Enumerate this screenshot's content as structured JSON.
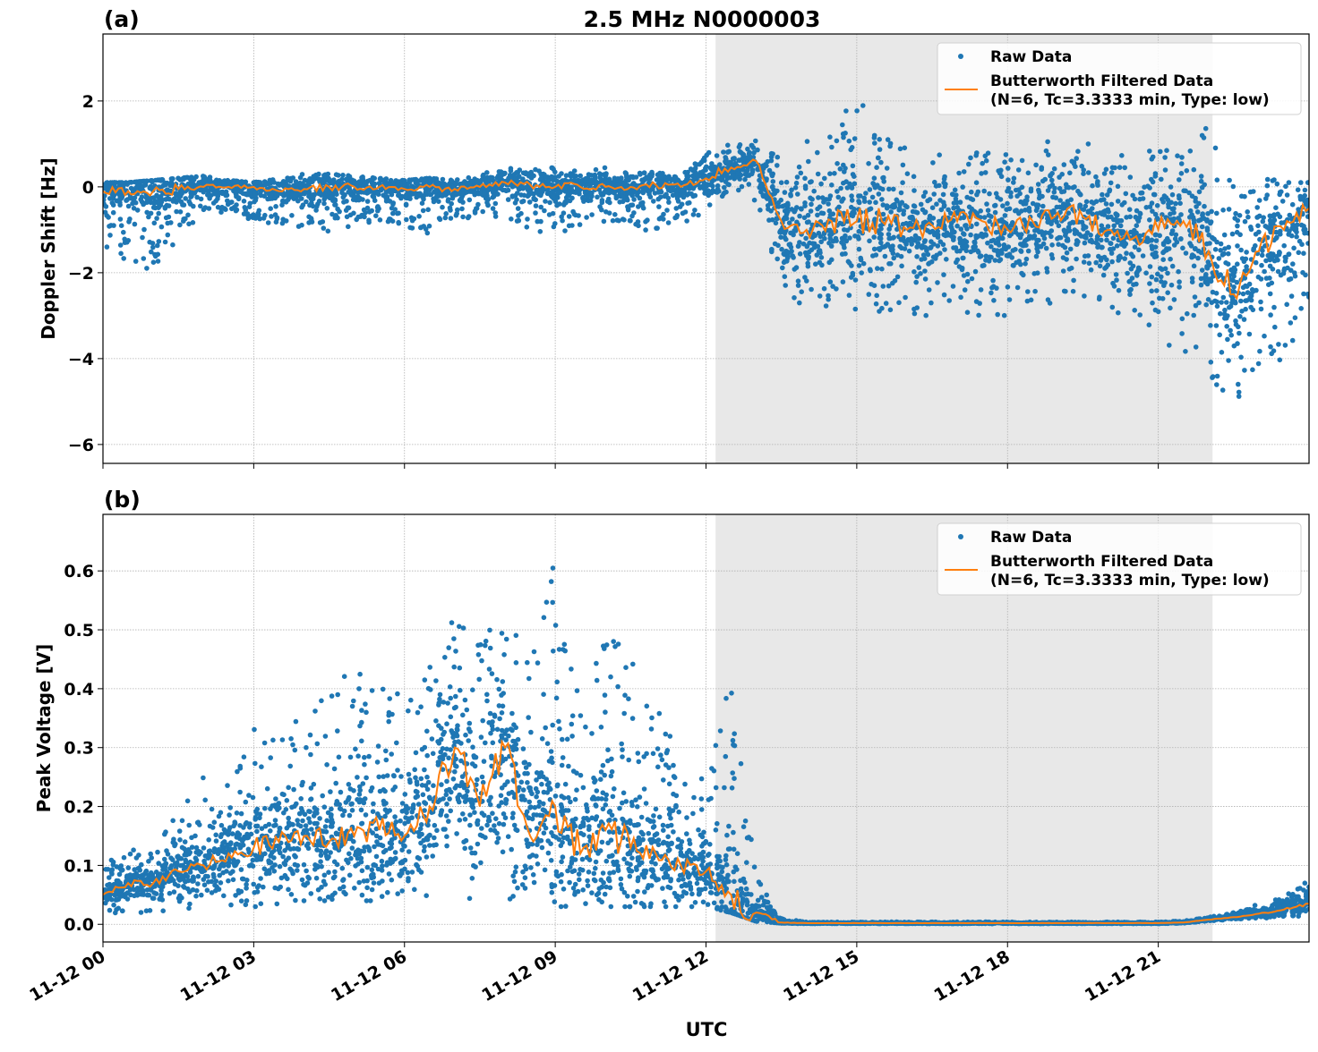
{
  "chart_data": {
    "title": "2.5 MHz N0000003",
    "xlabel": "UTC",
    "x_unit": "hours since 11-12 00 UTC",
    "xlim": [
      0,
      24
    ],
    "xticks": [
      0,
      3,
      6,
      9,
      12,
      15,
      18,
      21
    ],
    "xtick_labels": [
      "11-12 00",
      "11-12 03",
      "11-12 06",
      "11-12 09",
      "11-12 12",
      "11-12 15",
      "11-12 18",
      "11-12 21"
    ],
    "shaded_interval": [
      12.19,
      22.08
    ],
    "shade_color": "#e8e8e8",
    "grid": true,
    "legend_placement": "upper-right",
    "series_colors": {
      "raw": "#1f77b4",
      "filtered": "#ff7f0e"
    },
    "panels": [
      {
        "label": "(a)",
        "type": "scatter+line",
        "ylabel": "Doppler Shift [Hz]",
        "ylim": [
          -6.44,
          3.56
        ],
        "yticks": [
          -6,
          -4,
          -2,
          0,
          2
        ],
        "ytick_labels": [
          "−6",
          "−4",
          "−2",
          "0",
          "2"
        ],
        "legend": [
          "Raw Data",
          "Butterworth Filtered Data",
          "(N=6, Tc=3.3333 min, Type: low)"
        ],
        "x": [
          0,
          0.5,
          1,
          1.5,
          2,
          2.5,
          3,
          3.5,
          4,
          4.5,
          5,
          5.5,
          6,
          6.5,
          7,
          7.5,
          8,
          8.5,
          9,
          9.5,
          10,
          10.5,
          11,
          11.5,
          12,
          12.5,
          13,
          13.5,
          14,
          14.5,
          15,
          15.5,
          16,
          16.5,
          17,
          17.5,
          18,
          18.5,
          19,
          19.5,
          20,
          20.5,
          21,
          21.5,
          22,
          22.5,
          23,
          23.5,
          24
        ],
        "filtered": [
          -0.1,
          -0.1,
          -0.1,
          -0.05,
          0,
          0,
          0,
          -0.1,
          -0.05,
          0,
          0,
          0,
          -0.05,
          0,
          -0.05,
          0,
          0.1,
          0.05,
          0,
          0,
          0,
          0,
          0.05,
          0,
          0.2,
          0.45,
          0.6,
          -0.8,
          -1.0,
          -0.8,
          -0.8,
          -0.8,
          -1.0,
          -0.9,
          -0.8,
          -0.8,
          -1.0,
          -0.8,
          -0.6,
          -0.7,
          -1.0,
          -1.2,
          -1.0,
          -0.8,
          -1.5,
          -2.5,
          -1.5,
          -1.0,
          -0.5
        ],
        "raw_min": [
          -1.5,
          -1.8,
          -2.0,
          -1.2,
          -0.6,
          -0.6,
          -0.8,
          -0.9,
          -1.0,
          -1.1,
          -0.9,
          -0.8,
          -0.9,
          -1.2,
          -0.8,
          -0.7,
          -0.7,
          -1.0,
          -1.2,
          -0.9,
          -0.8,
          -0.9,
          -1.1,
          -0.8,
          -1.0,
          0,
          -0.4,
          -2.5,
          -2.8,
          -3.0,
          -3.3,
          -3.0,
          -3.0,
          -3.0,
          -3.0,
          -3.0,
          -3.2,
          -2.8,
          -2.8,
          -2.8,
          -2.8,
          -3.2,
          -3.5,
          -4.0,
          -4.5,
          -5.0,
          -4.5,
          -4.0,
          -3.0
        ],
        "raw_max": [
          0.1,
          0.1,
          0.15,
          0.2,
          0.25,
          0.15,
          0.1,
          0.2,
          0.3,
          0.3,
          0.25,
          0.2,
          0.15,
          0.2,
          0.15,
          0.3,
          0.45,
          0.4,
          0.45,
          0.35,
          0.45,
          0.3,
          0.35,
          0.35,
          0.8,
          1.0,
          1.2,
          0.7,
          1.2,
          1.7,
          2.3,
          1.3,
          1.0,
          1.0,
          1.1,
          1.0,
          1.0,
          1.0,
          1.3,
          1.0,
          1.0,
          0.8,
          1.0,
          1.2,
          1.5,
          0.0,
          0.3,
          0.1,
          0.1
        ]
      },
      {
        "label": "(b)",
        "type": "scatter+line",
        "ylabel": "Peak Voltage [V]",
        "ylim": [
          -0.03,
          0.696
        ],
        "yticks": [
          0,
          0.1,
          0.2,
          0.3,
          0.4,
          0.5,
          0.6
        ],
        "ytick_labels": [
          "0.0",
          "0.1",
          "0.2",
          "0.3",
          "0.4",
          "0.5",
          "0.6"
        ],
        "legend": [
          "Raw Data",
          "Butterworth Filtered Data",
          "(N=6, Tc=3.3333 min, Type: low)"
        ],
        "x": [
          0,
          0.5,
          1,
          1.5,
          2,
          2.5,
          3,
          3.5,
          4,
          4.5,
          5,
          5.5,
          6,
          6.5,
          7,
          7.5,
          8,
          8.5,
          9,
          9.5,
          10,
          10.5,
          11,
          11.5,
          12,
          12.5,
          13,
          13.5,
          14,
          14.5,
          15,
          15.5,
          16,
          16.5,
          17,
          17.5,
          18,
          18.5,
          19,
          19.5,
          20,
          20.5,
          21,
          21.5,
          22,
          22.5,
          23,
          23.5,
          24
        ],
        "filtered": [
          0.05,
          0.07,
          0.07,
          0.09,
          0.1,
          0.12,
          0.13,
          0.14,
          0.15,
          0.14,
          0.15,
          0.16,
          0.15,
          0.2,
          0.3,
          0.2,
          0.3,
          0.15,
          0.2,
          0.12,
          0.16,
          0.13,
          0.12,
          0.1,
          0.09,
          0.05,
          0.02,
          0.003,
          0.002,
          0.002,
          0.002,
          0.002,
          0.002,
          0.002,
          0.002,
          0.002,
          0.002,
          0.002,
          0.002,
          0.002,
          0.002,
          0.002,
          0.002,
          0.003,
          0.008,
          0.012,
          0.018,
          0.025,
          0.035
        ],
        "raw_min": [
          0.015,
          0.02,
          0.02,
          0.02,
          0.02,
          0.03,
          0.03,
          0.03,
          0.04,
          0.04,
          0.04,
          0.04,
          0.04,
          0.05,
          0.04,
          0.03,
          0.04,
          0.03,
          0.03,
          0.03,
          0.03,
          0.03,
          0.03,
          0.03,
          0.03,
          0.02,
          0.005,
          0.002,
          0.001,
          0.001,
          0.001,
          0.001,
          0.001,
          0.001,
          0.001,
          0.001,
          0.001,
          0.001,
          0.001,
          0.001,
          0.001,
          0.001,
          0.001,
          0.002,
          0.005,
          0.008,
          0.01,
          0.012,
          0.015
        ],
        "raw_max": [
          0.1,
          0.13,
          0.12,
          0.2,
          0.25,
          0.25,
          0.35,
          0.32,
          0.38,
          0.38,
          0.45,
          0.4,
          0.4,
          0.48,
          0.6,
          0.52,
          0.55,
          0.45,
          0.66,
          0.4,
          0.55,
          0.45,
          0.37,
          0.3,
          0.25,
          0.42,
          0.08,
          0.01,
          0.004,
          0.004,
          0.004,
          0.004,
          0.004,
          0.004,
          0.004,
          0.004,
          0.004,
          0.004,
          0.004,
          0.004,
          0.004,
          0.004,
          0.004,
          0.006,
          0.012,
          0.02,
          0.035,
          0.05,
          0.075
        ]
      }
    ]
  }
}
